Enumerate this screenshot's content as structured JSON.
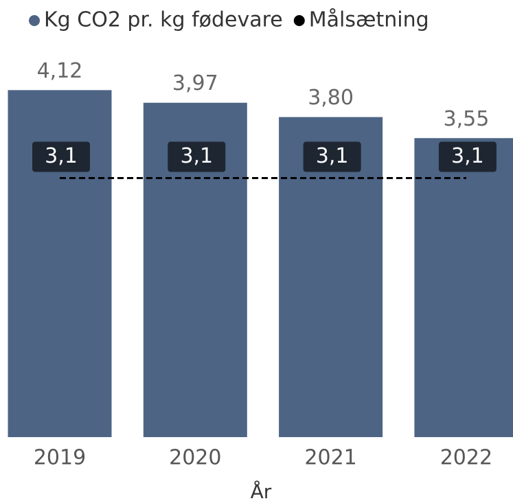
{
  "chart_data": {
    "type": "bar",
    "x_label": "År",
    "categories": [
      "2019",
      "2020",
      "2021",
      "2022"
    ],
    "series": [
      {
        "name": "Kg CO2 pr. kg fødevare",
        "type": "bar",
        "color": "#4d6484",
        "values": [
          4.12,
          3.97,
          3.8,
          3.55
        ],
        "value_labels": [
          "4,12",
          "3,97",
          "3,80",
          "3,55"
        ]
      },
      {
        "name": "Målsætning",
        "type": "line",
        "color": "#000000",
        "values": [
          3.1,
          3.1,
          3.1,
          3.1
        ],
        "value_labels": [
          "3,1",
          "3,1",
          "3,1",
          "3,1"
        ]
      }
    ],
    "ylim": [
      0,
      5.19
    ]
  }
}
